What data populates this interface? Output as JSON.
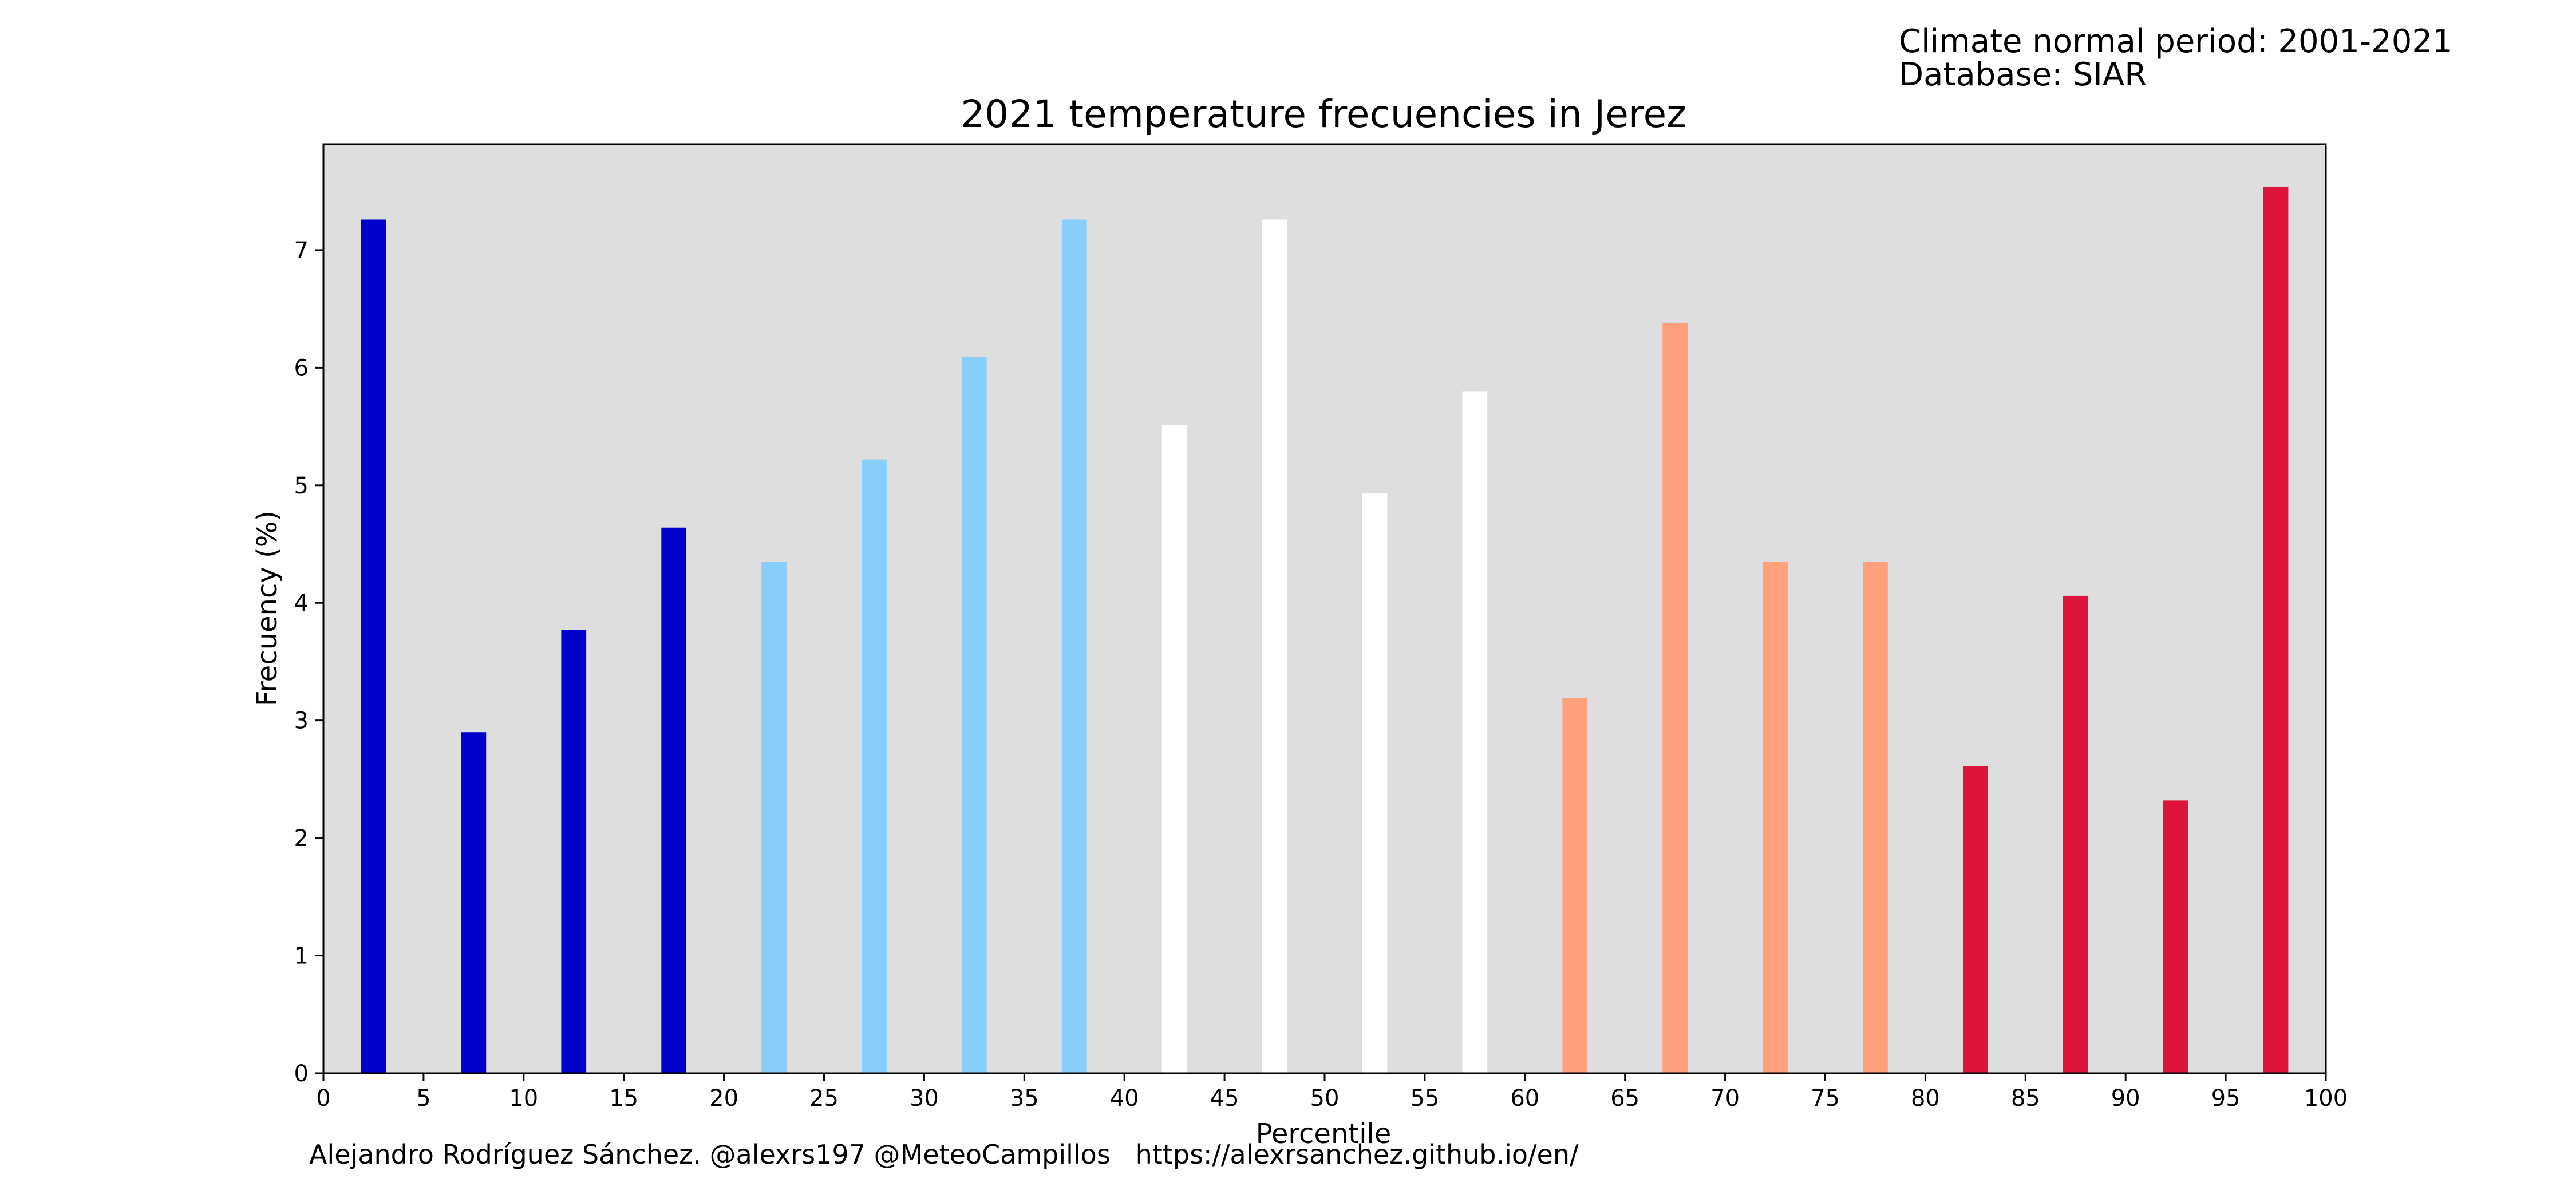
{
  "header": {
    "info_line_1": "Climate normal period: 2001-2021",
    "info_line_2": "Database: SIAR"
  },
  "footer": {
    "credit": "Alejandro Rodríguez Sánchez. @alexrs197 @MeteoCampillos   https://alexrsanchez.github.io/en/"
  },
  "colors": {
    "plot_background": "#dedede",
    "very_cold": "#0000cd",
    "cold": "#87cefa",
    "normal": "#ffffff",
    "warm": "#ffa07a",
    "very_warm": "#dc143c"
  },
  "chart_data": {
    "type": "bar",
    "title": "2021 temperature frecuencies in Jerez",
    "xlabel": "Percentile",
    "ylabel": "Frecuency (%)",
    "xlim": [
      0,
      100
    ],
    "ylim": [
      0,
      7.9
    ],
    "xticks": [
      0,
      5,
      10,
      15,
      20,
      25,
      30,
      35,
      40,
      45,
      50,
      55,
      60,
      65,
      70,
      75,
      80,
      85,
      90,
      95,
      100
    ],
    "yticks": [
      0,
      1,
      2,
      3,
      4,
      5,
      6,
      7
    ],
    "bar_width": 1.25,
    "x": [
      2.5,
      7.5,
      12.5,
      17.5,
      22.5,
      27.5,
      32.5,
      37.5,
      42.5,
      47.5,
      52.5,
      57.5,
      62.5,
      67.5,
      72.5,
      77.5,
      82.5,
      87.5,
      92.5,
      97.5
    ],
    "values": [
      7.26,
      2.9,
      3.77,
      4.64,
      4.35,
      5.22,
      6.09,
      7.26,
      5.51,
      7.26,
      4.93,
      5.8,
      3.19,
      6.38,
      4.35,
      4.35,
      2.61,
      4.06,
      2.32,
      7.54
    ],
    "colors": [
      "#0000cd",
      "#0000cd",
      "#0000cd",
      "#0000cd",
      "#87cefa",
      "#87cefa",
      "#87cefa",
      "#87cefa",
      "#ffffff",
      "#ffffff",
      "#ffffff",
      "#ffffff",
      "#ffa07a",
      "#ffa07a",
      "#ffa07a",
      "#ffa07a",
      "#dc143c",
      "#dc143c",
      "#dc143c",
      "#dc143c"
    ],
    "grid": false
  }
}
